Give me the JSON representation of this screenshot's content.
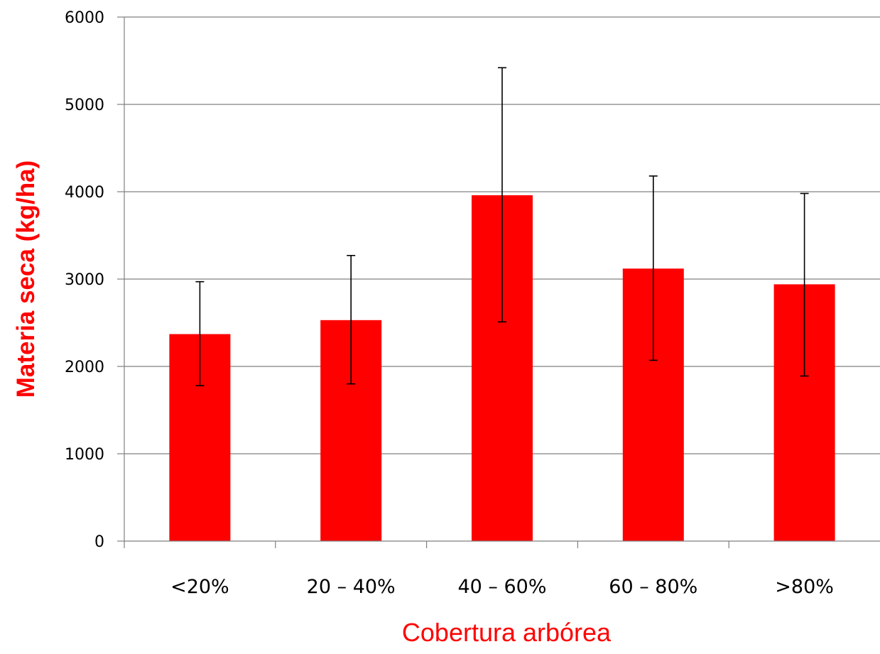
{
  "chart_data": {
    "type": "bar",
    "categories": [
      "<20%",
      "20 – 40%",
      "40 – 60%",
      "60 – 80%",
      ">80%"
    ],
    "values": [
      2370,
      2530,
      3960,
      3120,
      2940
    ],
    "error_bars": {
      "upper": [
        2970,
        3270,
        5420,
        4180,
        3980
      ],
      "lower": [
        1780,
        1800,
        2510,
        2070,
        1890
      ]
    },
    "title": "",
    "xlabel": "Cobertura arbórea",
    "ylabel": "Materia seca (kg/ha)",
    "ylim": [
      0,
      6000
    ],
    "yticks": [
      0,
      1000,
      2000,
      3000,
      4000,
      5000,
      6000
    ],
    "grid": true,
    "legend": "none",
    "colors": {
      "bar": "#ff0000",
      "axis_title": "#ff0000",
      "grid": "#808080",
      "error_bar": "#000000"
    }
  }
}
